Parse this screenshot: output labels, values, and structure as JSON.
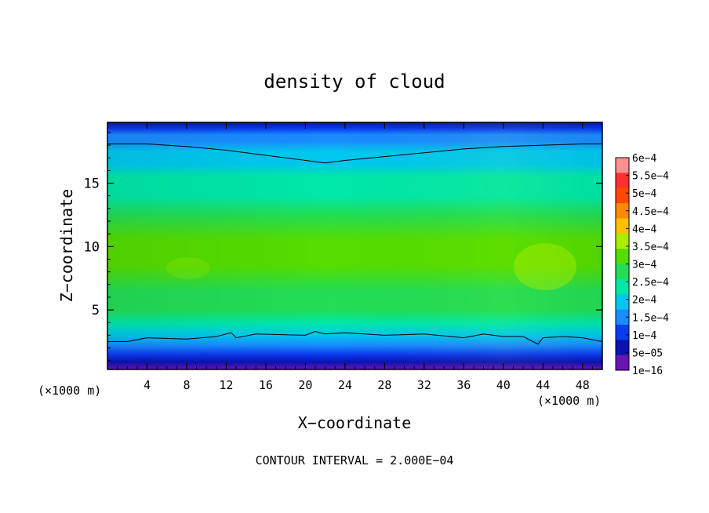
{
  "chart_data": {
    "type": "heatmap",
    "title": "density of cloud",
    "xlabel": "X−coordinate",
    "ylabel": "Z−coordinate",
    "x_unit_left": "(×1000 m)",
    "x_unit_right": "(×1000 m)",
    "xlim": [
      0,
      50
    ],
    "ylim": [
      0.3,
      19.8
    ],
    "xticks": [
      4,
      8,
      12,
      16,
      20,
      24,
      28,
      32,
      36,
      40,
      44,
      48
    ],
    "yticks": [
      5,
      10,
      15
    ],
    "footer": "CONTOUR INTERVAL = 2.000E−04",
    "colorbar": {
      "labels": [
        "6e−4",
        "5.5e−4",
        "5e−4",
        "4.5e−4",
        "4e−4",
        "3.5e−4",
        "3e−4",
        "2.5e−4",
        "2e−4",
        "1.5e−4",
        "1e−4",
        "5e−05",
        "1e−16"
      ],
      "values": [
        0.0006,
        0.00055,
        0.0005,
        0.00045,
        0.0004,
        0.00035,
        0.0003,
        0.00025,
        0.0002,
        0.00015,
        0.0001,
        5e-05,
        1e-16
      ],
      "colors": [
        "#ff9090",
        "#ff3030",
        "#ff4a00",
        "#ff8a00",
        "#ffc000",
        "#aaee00",
        "#55dd00",
        "#22dd55",
        "#00e8a8",
        "#00c8ee",
        "#1a8cff",
        "#0a3cf0",
        "#0a12b4",
        "#6a14b4"
      ]
    },
    "profile": {
      "z": [
        0.3,
        0.9,
        1.5,
        2.2,
        3.0,
        4.0,
        5.0,
        6.5,
        8.5,
        10.5,
        12.5,
        14.0,
        15.5,
        16.5,
        17.5,
        18.3,
        18.8,
        19.3,
        19.8
      ],
      "density": [
        1e-16,
        5e-05,
        0.0001,
        0.00015,
        0.0002,
        0.00025,
        0.0003,
        0.00033,
        0.00036,
        0.00035,
        0.00032,
        0.00029,
        0.00026,
        0.00023,
        0.00021,
        0.00019,
        0.00015,
        0.0001,
        5e-05
      ]
    },
    "contour_lines": [
      {
        "label": "2.000E−04",
        "x": [
          0,
          2,
          4,
          8,
          11,
          12.5,
          13,
          15,
          20,
          21,
          22,
          24,
          28,
          32,
          36,
          38,
          40,
          42,
          43.5,
          44,
          46,
          48,
          50
        ],
        "z": [
          2.5,
          2.5,
          2.8,
          2.7,
          2.9,
          3.2,
          2.8,
          3.1,
          3.0,
          3.3,
          3.1,
          3.2,
          3.0,
          3.1,
          2.8,
          3.1,
          2.9,
          2.9,
          2.3,
          2.8,
          2.9,
          2.8,
          2.5
        ]
      },
      {
        "label": "2.000E−04",
        "x": [
          0,
          4,
          8,
          12,
          16,
          20,
          22,
          24,
          28,
          32,
          36,
          40,
          44,
          48,
          50
        ],
        "z": [
          18.1,
          18.1,
          17.9,
          17.6,
          17.2,
          16.8,
          16.6,
          16.8,
          17.1,
          17.4,
          17.7,
          17.9,
          18.0,
          18.1,
          18.1
        ]
      }
    ]
  }
}
